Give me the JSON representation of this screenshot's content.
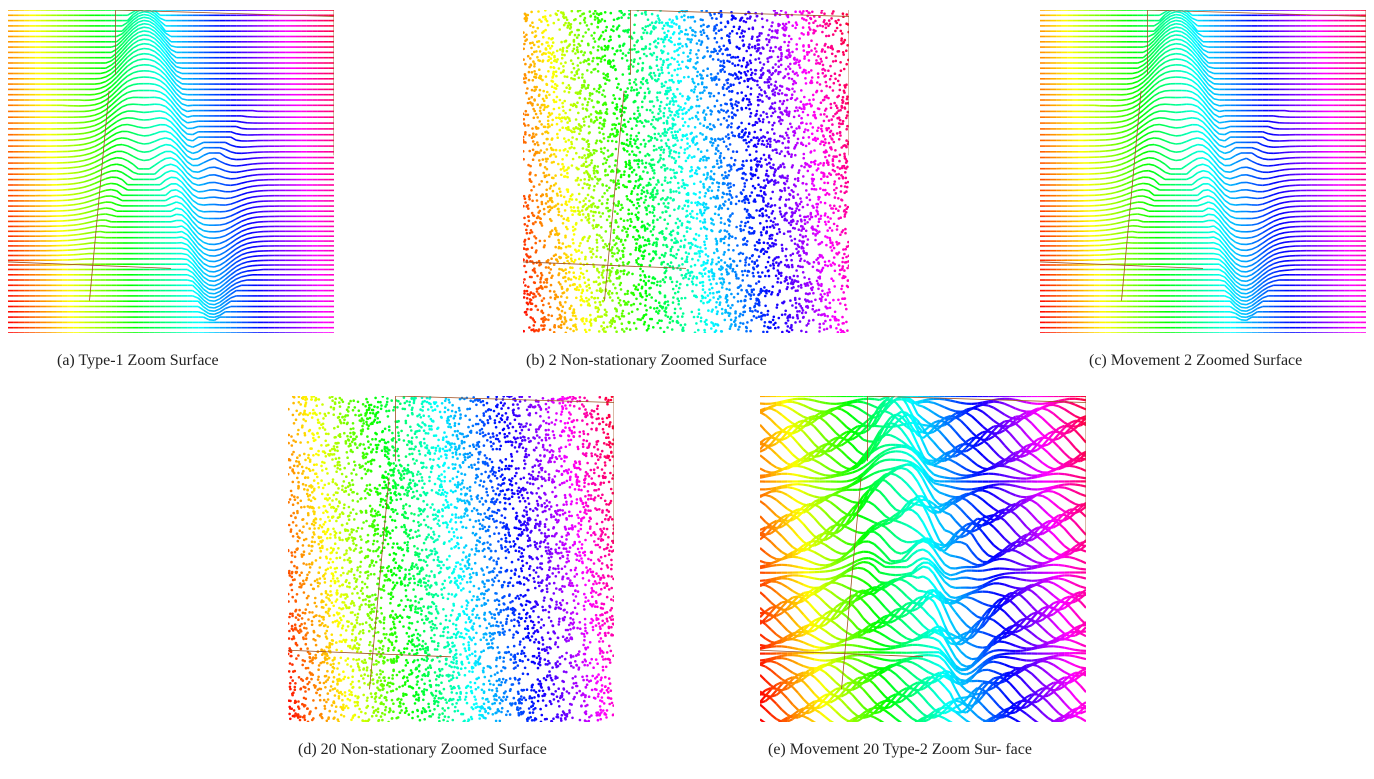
{
  "figure": {
    "panels": [
      {
        "id": "a",
        "caption": "(a) Type-1 Zoom Surface",
        "variant": "lines",
        "jitter": 0
      },
      {
        "id": "b",
        "caption": "(b) 2 Non-stationary Zoomed Surface",
        "variant": "noise",
        "jitter": 0.4
      },
      {
        "id": "c",
        "caption": "(c) Movement 2 Zoomed Surface",
        "variant": "lines",
        "jitter": 0.1
      },
      {
        "id": "d",
        "caption": "(d) 20 Non-stationary Zoomed Surface",
        "variant": "noise",
        "jitter": 0.8
      },
      {
        "id": "e",
        "caption": "(e) Movement 20 Type-2 Zoom Sur- face",
        "variant": "distorted",
        "jitter": 0
      }
    ]
  }
}
